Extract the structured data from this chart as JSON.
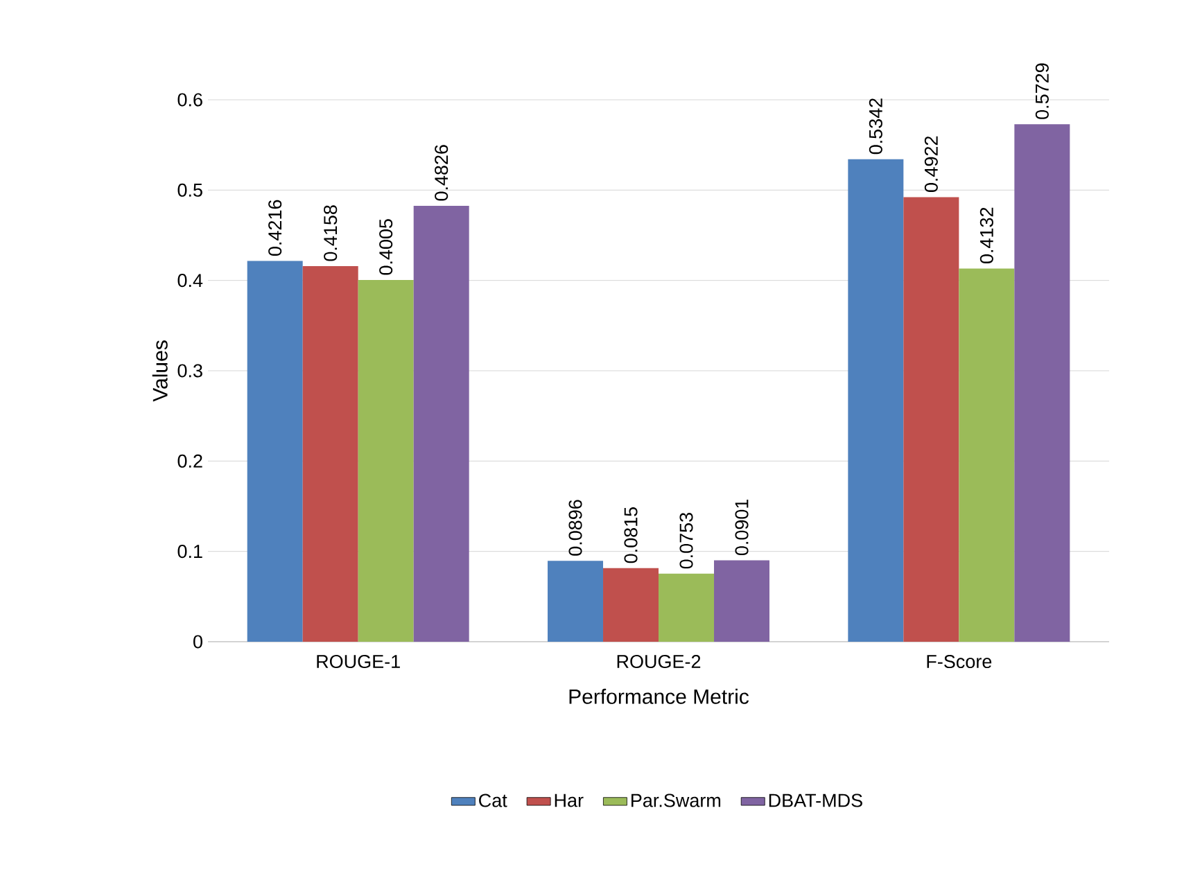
{
  "chart_data": {
    "type": "bar",
    "xlabel": "Performance Metric",
    "ylabel": "Values",
    "categories": [
      "ROUGE-1",
      "ROUGE-2",
      "F-Score"
    ],
    "series": [
      {
        "name": "Cat",
        "color": "#4f81bd",
        "values": [
          0.4216,
          0.0896,
          0.5342
        ]
      },
      {
        "name": "Har",
        "color": "#c0504d",
        "values": [
          0.4158,
          0.0815,
          0.4922
        ]
      },
      {
        "name": "Par.Swarm",
        "color": "#9bbb59",
        "values": [
          0.4005,
          0.0753,
          0.4132
        ]
      },
      {
        "name": "DBAT-MDS",
        "color": "#8064a2",
        "values": [
          0.4826,
          0.0901,
          0.5729
        ]
      }
    ],
    "ylim": [
      0,
      0.6
    ],
    "yticks": [
      0,
      0.1,
      0.2,
      0.3,
      0.4,
      0.5,
      0.6
    ],
    "grid": "y",
    "legend": "bottom",
    "data_labels": true
  }
}
